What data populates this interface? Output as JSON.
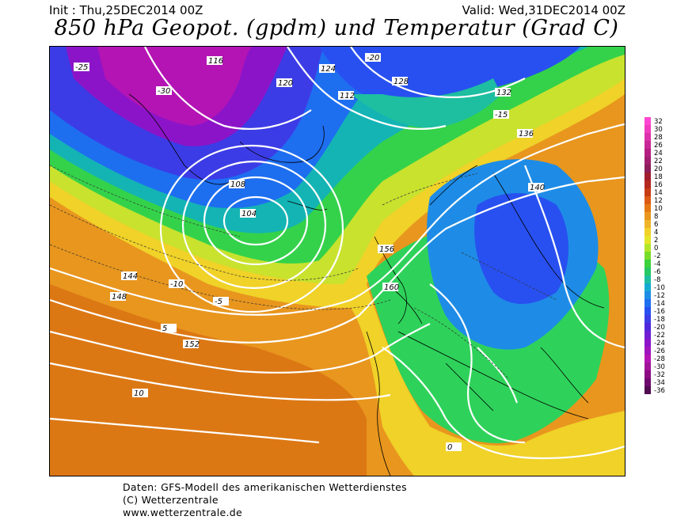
{
  "header": {
    "init": "Init : Thu,25DEC2014 00Z",
    "valid": "Valid: Wed,31DEC2014 00Z",
    "title": "850 hPa Geopot. (gpdm) und Temperatur (Grad C)"
  },
  "footer": {
    "line1": "Daten: GFS-Modell des amerikanischen Wetterdienstes",
    "line2": "(C) Wetterzentrale",
    "line3": "www.wetterzentrale.de"
  },
  "colors": {
    "ocean_cold": "#3a3ad8",
    "very_cold": "#b01ec8",
    "cold": "#1e78e6",
    "cool": "#14b4dc",
    "mild_cool": "#2ed27a",
    "green": "#34d24a",
    "yellow_green": "#d2e62e",
    "yellow": "#f0dc28",
    "orange": "#e89a1e",
    "dark_orange": "#d86e12",
    "contour": "#ffffff",
    "coast": "#000000"
  },
  "temperature_scale": {
    "unit": "",
    "steps": [
      {
        "value": "32",
        "color": "#ff46d2"
      },
      {
        "value": "30",
        "color": "#f03cbe"
      },
      {
        "value": "28",
        "color": "#dc32aa"
      },
      {
        "value": "26",
        "color": "#c82896"
      },
      {
        "value": "24",
        "color": "#b41e82"
      },
      {
        "value": "22",
        "color": "#a01e6e"
      },
      {
        "value": "20",
        "color": "#8c1e5a"
      },
      {
        "value": "18",
        "color": "#a01e2e"
      },
      {
        "value": "16",
        "color": "#b4281e"
      },
      {
        "value": "14",
        "color": "#c83c14"
      },
      {
        "value": "12",
        "color": "#dc5a14"
      },
      {
        "value": "10",
        "color": "#e67814"
      },
      {
        "value": "8",
        "color": "#e8961e"
      },
      {
        "value": "6",
        "color": "#f0b428"
      },
      {
        "value": "4",
        "color": "#f0d228"
      },
      {
        "value": "2",
        "color": "#e6e628"
      },
      {
        "value": "0",
        "color": "#b4e628"
      },
      {
        "value": "-2",
        "color": "#78dc28"
      },
      {
        "value": "-4",
        "color": "#3cd23c"
      },
      {
        "value": "-6",
        "color": "#28c864"
      },
      {
        "value": "-8",
        "color": "#1ebea0"
      },
      {
        "value": "-10",
        "color": "#14aad2"
      },
      {
        "value": "-12",
        "color": "#1e8ce6"
      },
      {
        "value": "-14",
        "color": "#1e6ef0"
      },
      {
        "value": "-16",
        "color": "#2850f0"
      },
      {
        "value": "-18",
        "color": "#3c3ce6"
      },
      {
        "value": "-20",
        "color": "#5028dc"
      },
      {
        "value": "-22",
        "color": "#6e1ed2"
      },
      {
        "value": "-24",
        "color": "#8c14c8"
      },
      {
        "value": "-26",
        "color": "#a014be"
      },
      {
        "value": "-28",
        "color": "#b414b4"
      },
      {
        "value": "-30",
        "color": "#a0149a"
      },
      {
        "value": "-32",
        "color": "#8c0a82"
      },
      {
        "value": "-34",
        "color": "#6e0a6e"
      },
      {
        "value": "-36",
        "color": "#500a50"
      }
    ]
  },
  "geopotential_labels": [
    {
      "text": "116"
    },
    {
      "text": "120"
    },
    {
      "text": "124"
    },
    {
      "text": "128"
    },
    {
      "text": "132"
    },
    {
      "text": "136"
    },
    {
      "text": "140"
    },
    {
      "text": "144"
    },
    {
      "text": "148"
    },
    {
      "text": "152"
    },
    {
      "text": "156"
    },
    {
      "text": "160"
    },
    {
      "text": "104"
    },
    {
      "text": "108"
    },
    {
      "text": "112"
    }
  ],
  "temperature_labels": [
    {
      "text": "-25"
    },
    {
      "text": "-30"
    },
    {
      "text": "-20"
    },
    {
      "text": "-15"
    },
    {
      "text": "-10"
    },
    {
      "text": "-5"
    },
    {
      "text": "0"
    },
    {
      "text": "5"
    },
    {
      "text": "10"
    }
  ]
}
